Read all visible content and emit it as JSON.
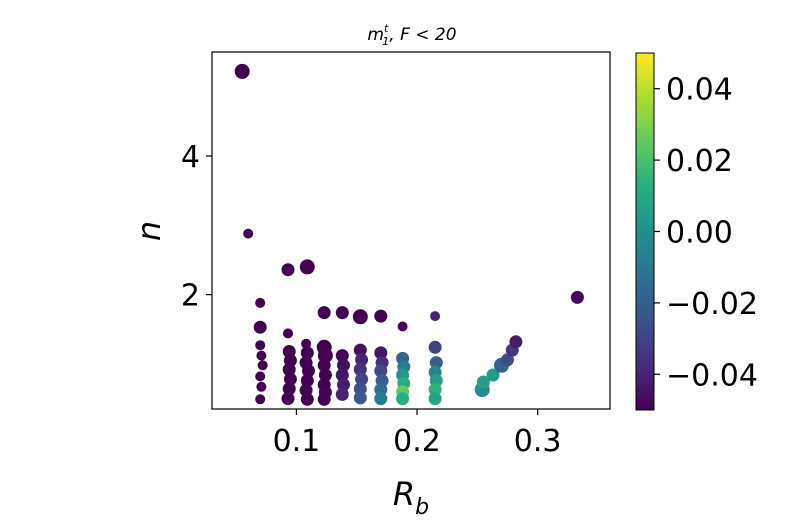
{
  "chart_data": {
    "type": "scatter",
    "title": {
      "base": "m",
      "sup": "t",
      "sub": "1",
      "rest": ", F < 20"
    },
    "xlabel": {
      "base": "R",
      "sub": "b"
    },
    "ylabel": "n",
    "xlim": [
      0.03,
      0.36
    ],
    "ylim": [
      0.35,
      5.5
    ],
    "xticks": [
      0.1,
      0.2,
      0.3
    ],
    "xtick_labels": [
      "0.1",
      "0.2",
      "0.3"
    ],
    "yticks": [
      2,
      4
    ],
    "ytick_labels": [
      "2",
      "4"
    ],
    "grid": false,
    "colormap": "viridis",
    "colorbar": {
      "range": [
        -0.05,
        0.05
      ],
      "ticks": [
        -0.04,
        -0.02,
        0.0,
        0.02,
        0.04
      ],
      "tick_labels": [
        "−0.04",
        "−0.02",
        "0.00",
        "0.02",
        "0.04"
      ]
    },
    "points": [
      [
        0.055,
        5.22,
        -0.05,
        "l"
      ],
      [
        0.06,
        2.88,
        -0.05,
        "s"
      ],
      [
        0.07,
        1.88,
        -0.05,
        "s"
      ],
      [
        0.07,
        1.53,
        -0.05,
        "m"
      ],
      [
        0.07,
        1.27,
        -0.05,
        "s"
      ],
      [
        0.071,
        1.12,
        -0.05,
        "s"
      ],
      [
        0.072,
        0.98,
        -0.05,
        "s"
      ],
      [
        0.07,
        0.82,
        -0.05,
        "s"
      ],
      [
        0.071,
        0.67,
        -0.05,
        "s"
      ],
      [
        0.07,
        0.49,
        -0.05,
        "s"
      ],
      [
        0.093,
        2.36,
        -0.05,
        "m"
      ],
      [
        0.109,
        2.4,
        -0.05,
        "l"
      ],
      [
        0.093,
        1.44,
        -0.05,
        "s"
      ],
      [
        0.094,
        1.18,
        -0.05,
        "m"
      ],
      [
        0.095,
        1.05,
        -0.05,
        "m"
      ],
      [
        0.094,
        0.92,
        -0.05,
        "m"
      ],
      [
        0.095,
        0.78,
        -0.05,
        "m"
      ],
      [
        0.094,
        0.64,
        -0.05,
        "m"
      ],
      [
        0.093,
        0.5,
        -0.05,
        "m"
      ],
      [
        0.108,
        1.29,
        -0.05,
        "s"
      ],
      [
        0.109,
        1.16,
        -0.05,
        "m"
      ],
      [
        0.108,
        1.02,
        -0.05,
        "m"
      ],
      [
        0.11,
        0.9,
        -0.05,
        "m"
      ],
      [
        0.109,
        0.76,
        -0.05,
        "m"
      ],
      [
        0.108,
        0.62,
        -0.05,
        "m"
      ],
      [
        0.109,
        0.49,
        -0.05,
        "m"
      ],
      [
        0.123,
        1.74,
        -0.05,
        "m"
      ],
      [
        0.123,
        1.24,
        -0.05,
        "l"
      ],
      [
        0.124,
        1.12,
        -0.05,
        "l"
      ],
      [
        0.123,
        0.98,
        -0.05,
        "m"
      ],
      [
        0.124,
        0.84,
        -0.05,
        "m"
      ],
      [
        0.123,
        0.7,
        -0.05,
        "m"
      ],
      [
        0.124,
        0.59,
        -0.049,
        "m"
      ],
      [
        0.123,
        0.49,
        -0.05,
        "m"
      ],
      [
        0.138,
        1.74,
        -0.05,
        "m"
      ],
      [
        0.138,
        1.12,
        -0.048,
        "m"
      ],
      [
        0.139,
        0.98,
        -0.046,
        "m"
      ],
      [
        0.138,
        0.84,
        -0.044,
        "m"
      ],
      [
        0.139,
        0.7,
        -0.042,
        "m"
      ],
      [
        0.138,
        0.56,
        -0.04,
        "m"
      ],
      [
        0.153,
        1.68,
        -0.05,
        "l"
      ],
      [
        0.153,
        1.2,
        -0.046,
        "m"
      ],
      [
        0.154,
        1.06,
        -0.04,
        "m"
      ],
      [
        0.153,
        0.92,
        -0.036,
        "m"
      ],
      [
        0.154,
        0.78,
        -0.03,
        "m"
      ],
      [
        0.153,
        0.64,
        -0.026,
        "m"
      ],
      [
        0.153,
        0.51,
        -0.022,
        "m"
      ],
      [
        0.17,
        1.69,
        -0.05,
        "m"
      ],
      [
        0.17,
        1.16,
        -0.044,
        "m"
      ],
      [
        0.171,
        1.02,
        -0.036,
        "m"
      ],
      [
        0.17,
        0.9,
        -0.028,
        "m"
      ],
      [
        0.171,
        0.76,
        -0.02,
        "m"
      ],
      [
        0.17,
        0.63,
        -0.014,
        "m"
      ],
      [
        0.17,
        0.5,
        -0.008,
        "m"
      ],
      [
        0.188,
        1.54,
        -0.048,
        "s"
      ],
      [
        0.188,
        1.08,
        -0.018,
        "m"
      ],
      [
        0.189,
        0.96,
        -0.008,
        "m"
      ],
      [
        0.188,
        0.84,
        0.002,
        "m"
      ],
      [
        0.189,
        0.72,
        0.012,
        "m"
      ],
      [
        0.188,
        0.6,
        0.026,
        "m"
      ],
      [
        0.188,
        0.5,
        0.012,
        "m"
      ],
      [
        0.215,
        1.69,
        -0.04,
        "s"
      ],
      [
        0.215,
        1.24,
        -0.03,
        "m"
      ],
      [
        0.216,
        1.02,
        -0.02,
        "m"
      ],
      [
        0.215,
        0.88,
        -0.004,
        "m"
      ],
      [
        0.216,
        0.76,
        0.006,
        "m"
      ],
      [
        0.215,
        0.63,
        0.014,
        "m"
      ],
      [
        0.215,
        0.5,
        0.008,
        "m"
      ],
      [
        0.254,
        0.63,
        -0.002,
        "l"
      ],
      [
        0.255,
        0.74,
        0.006,
        "m"
      ],
      [
        0.263,
        0.84,
        0.004,
        "m"
      ],
      [
        0.27,
        0.98,
        -0.018,
        "l"
      ],
      [
        0.275,
        1.06,
        -0.026,
        "m"
      ],
      [
        0.279,
        1.2,
        -0.035,
        "m"
      ],
      [
        0.282,
        1.32,
        -0.042,
        "m"
      ],
      [
        0.333,
        1.96,
        -0.048,
        "m"
      ]
    ]
  }
}
